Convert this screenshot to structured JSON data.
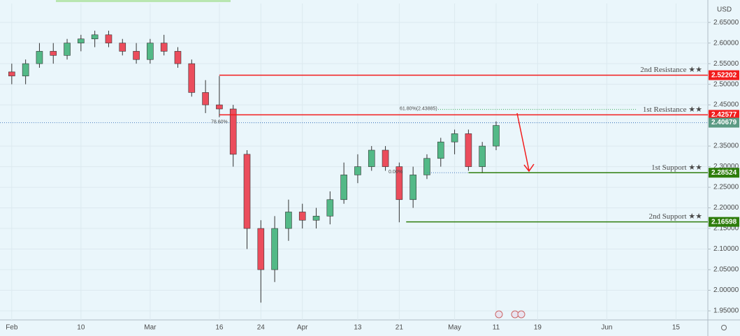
{
  "chart_data": {
    "type": "candlestick",
    "currency": "USD",
    "x": [
      0,
      2,
      4,
      6,
      8,
      10,
      12,
      14,
      16,
      18,
      20,
      22,
      24,
      26,
      28,
      30,
      32,
      34,
      36,
      38,
      40,
      42,
      44,
      46,
      48,
      50,
      52,
      54,
      56,
      58,
      60,
      62,
      64,
      66,
      68,
      70
    ],
    "open": [
      2.53,
      2.52,
      2.55,
      2.58,
      2.57,
      2.6,
      2.61,
      2.62,
      2.6,
      2.58,
      2.56,
      2.6,
      2.58,
      2.55,
      2.48,
      2.45,
      2.44,
      2.33,
      2.15,
      2.05,
      2.15,
      2.19,
      2.17,
      2.18,
      2.22,
      2.28,
      2.3,
      2.34,
      2.3,
      2.22,
      2.28,
      2.32,
      2.36,
      2.38,
      2.3,
      2.35
    ],
    "high": [
      2.55,
      2.56,
      2.6,
      2.6,
      2.61,
      2.62,
      2.63,
      2.63,
      2.61,
      2.6,
      2.61,
      2.62,
      2.59,
      2.56,
      2.51,
      2.52,
      2.45,
      2.34,
      2.17,
      2.18,
      2.22,
      2.21,
      2.2,
      2.24,
      2.31,
      2.33,
      2.35,
      2.35,
      2.31,
      2.3,
      2.33,
      2.37,
      2.39,
      2.39,
      2.36,
      2.41
    ],
    "low": [
      2.5,
      2.5,
      2.54,
      2.55,
      2.56,
      2.58,
      2.59,
      2.59,
      2.57,
      2.55,
      2.55,
      2.57,
      2.54,
      2.47,
      2.43,
      2.42,
      2.3,
      2.1,
      1.97,
      2.02,
      2.12,
      2.15,
      2.15,
      2.16,
      2.21,
      2.26,
      2.29,
      2.29,
      2.165,
      2.2,
      2.27,
      2.3,
      2.33,
      2.29,
      2.285,
      2.34
    ],
    "close": [
      2.52,
      2.55,
      2.58,
      2.57,
      2.6,
      2.61,
      2.62,
      2.6,
      2.58,
      2.56,
      2.6,
      2.58,
      2.55,
      2.48,
      2.45,
      2.44,
      2.33,
      2.15,
      2.05,
      2.15,
      2.19,
      2.17,
      2.18,
      2.22,
      2.28,
      2.3,
      2.34,
      2.3,
      2.22,
      2.28,
      2.32,
      2.36,
      2.38,
      2.3,
      2.35,
      2.4
    ],
    "up_color": "#53b987",
    "down_color": "#eb4d5c",
    "xlim": [
      -1.7,
      100.6
    ],
    "xticks": [
      {
        "value": 0,
        "label": "Feb"
      },
      10,
      {
        "value": 20,
        "label": "Mar"
      },
      {
        "value": 30,
        "label": "16"
      },
      {
        "value": 36,
        "label": "24"
      },
      {
        "value": 42,
        "label": "Apr"
      },
      {
        "value": 50,
        "label": "13"
      },
      {
        "value": 56,
        "label": "21"
      },
      {
        "value": 64,
        "label": "May"
      },
      {
        "value": 70,
        "label": "11"
      },
      {
        "value": 76,
        "label": "19"
      },
      {
        "value": 86,
        "label": "Jun"
      },
      {
        "value": 96,
        "label": "15"
      }
    ],
    "ylim": [
      1.928,
      2.696
    ],
    "yticks": [
      {
        "value": 1.95,
        "label": "1.95000"
      },
      {
        "value": 2.0,
        "label": "2.00000"
      },
      {
        "value": 2.05,
        "label": "2.05000"
      },
      {
        "value": 2.1,
        "label": "2.10000"
      },
      {
        "value": 2.15,
        "label": "2.15000"
      },
      {
        "value": 2.2,
        "label": "2.20000"
      },
      {
        "value": 2.25,
        "label": "2.25000"
      },
      {
        "value": 2.3,
        "label": "2.30000"
      },
      {
        "value": 2.35,
        "label": "2.35000"
      },
      {
        "value": 2.45,
        "label": "2.45000"
      },
      {
        "value": 2.5,
        "label": "2.50000"
      },
      {
        "value": 2.55,
        "label": "2.55000"
      },
      {
        "value": 2.6,
        "label": "2.60000"
      },
      {
        "value": 2.65,
        "label": "2.65000"
      }
    ],
    "grid": true,
    "levels": [
      {
        "label": "2nd Resistance ★★",
        "value": 2.52202,
        "x_start": 30,
        "color": "#f21c1c"
      },
      {
        "label": "1st Resistance ★★",
        "value": 2.42577,
        "x_start": 30,
        "color": "#f21c1c"
      },
      {
        "label": "1st Support ★★",
        "value": 2.28524,
        "x_start": 66,
        "color": "#2e7d0c"
      },
      {
        "label": "2nd Support ★★",
        "value": 2.16598,
        "x_start": 57,
        "color": "#2e7d0c"
      }
    ],
    "fib_levels": [
      {
        "label": "61.80%(2.43885)",
        "value": 2.43885,
        "color": "#3fae5e"
      },
      {
        "label": "78.60%",
        "value": 2.40679,
        "color": "#4a7fc1"
      },
      {
        "label": "0.00%",
        "value": 2.28524,
        "color": "#4a7fc1"
      }
    ],
    "last_price": {
      "value": 2.40679,
      "color": "#5b9a84"
    }
  }
}
